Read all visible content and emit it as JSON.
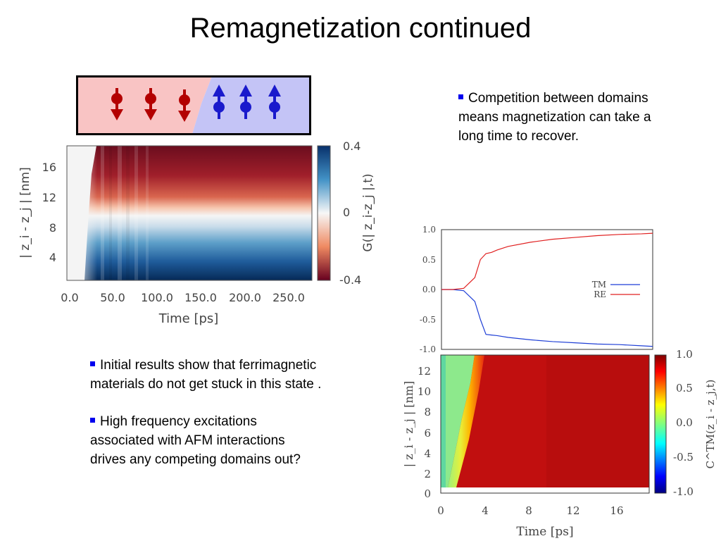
{
  "slide": {
    "title": "Remagnetization continued"
  },
  "bullets_right": [
    "Competition between domains means magnetization can take a long time to recover."
  ],
  "bullets_left": [
    "Initial results show that ferrimagnetic materials do not get stuck in this state .",
    "High frequency excitations associated with AFM interactions drives any competing domains out?"
  ],
  "colors": {
    "spin_down_domain": "#f9c4c4",
    "spin_up_domain": "#c4c4f6",
    "spin_down_arrow": "#b30000",
    "spin_up_arrow": "#1a1acc",
    "bullet": "#0000ee",
    "tm_line": "#1f3fd6",
    "re_line": "#e02020"
  },
  "chart_data": [
    {
      "type": "heatmap",
      "xlabel": "Time [ps]",
      "ylabel": "| z_i - z_j | [nm]",
      "x_ticks": [
        "0.0",
        "50.0",
        "100.0",
        "150.0",
        "200.0",
        "250.0"
      ],
      "y_ticks": [
        "4",
        "8",
        "12",
        "16"
      ],
      "colorbar_label": "G(| z_i-z_j |,t)",
      "colorbar_ticks": [
        "0.4",
        "0",
        "-0.4"
      ],
      "colormap": "red-white-blue",
      "xlim": [
        0,
        270
      ],
      "ylim": [
        0,
        18
      ]
    },
    {
      "type": "line",
      "series": [
        {
          "name": "TM",
          "x": [
            0,
            1,
            2,
            3,
            3.5,
            4,
            4.5,
            5,
            6,
            8,
            10,
            12,
            14,
            16,
            18,
            19
          ],
          "y": [
            0,
            0,
            -0.02,
            -0.2,
            -0.5,
            -0.75,
            -0.76,
            -0.77,
            -0.8,
            -0.84,
            -0.87,
            -0.89,
            -0.91,
            -0.92,
            -0.94,
            -0.95
          ]
        },
        {
          "name": "RE",
          "x": [
            0,
            1,
            2,
            3,
            3.5,
            4,
            4.5,
            5,
            6,
            8,
            10,
            12,
            14,
            16,
            18,
            19
          ],
          "y": [
            0,
            0,
            0.02,
            0.2,
            0.5,
            0.6,
            0.62,
            0.66,
            0.72,
            0.79,
            0.84,
            0.87,
            0.9,
            0.92,
            0.93,
            0.94
          ]
        }
      ],
      "y_ticks": [
        "1.0",
        "0.5",
        "0.0",
        "-0.5",
        "-1.0"
      ],
      "xlim": [
        0,
        19
      ],
      "ylim": [
        -1,
        1
      ]
    },
    {
      "type": "heatmap",
      "xlabel": "Time [ps]",
      "ylabel": "| z_i - z_j | [nm]",
      "x_ticks": [
        "0",
        "4",
        "8",
        "12",
        "16"
      ],
      "y_ticks": [
        "0",
        "2",
        "4",
        "6",
        "8",
        "10",
        "12"
      ],
      "colorbar_label": "C^TM(z_i - z_j,t)",
      "colorbar_ticks": [
        "1.0",
        "0.5",
        "0.0",
        "-0.5",
        "-1.0"
      ],
      "colormap": "jet",
      "xlim": [
        0,
        19
      ],
      "ylim": [
        0,
        13.5
      ]
    }
  ]
}
